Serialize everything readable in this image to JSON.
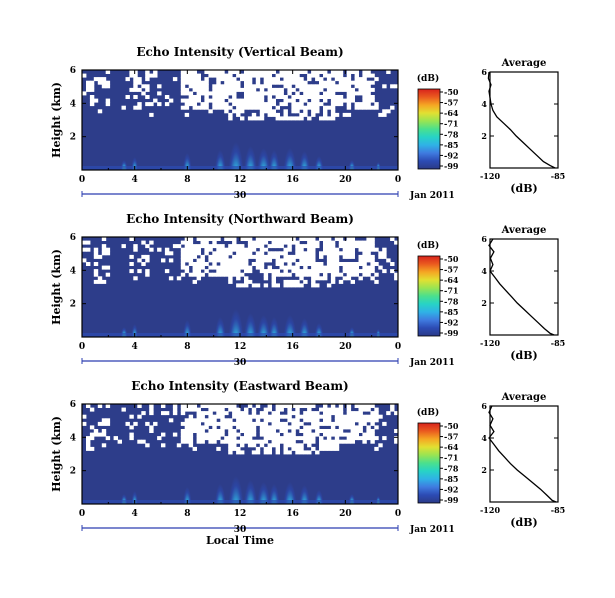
{
  "colors": {
    "background_fill": "#2d3d8a",
    "missing": "#ffffff",
    "colormap": [
      "#2b3a87",
      "#2c4bb4",
      "#3f7be0",
      "#2fb2e6",
      "#27d3c6",
      "#4be08d",
      "#9ae452",
      "#e2e032",
      "#f5a623",
      "#ea5a1f",
      "#d8231c"
    ]
  },
  "chart_data": [
    {
      "type": "heatmap",
      "title": "Echo Intensity (Vertical Beam)",
      "ylabel": "Height (km)",
      "xlabel": "",
      "ylim": [
        0,
        6
      ],
      "xlim": [
        0,
        24
      ],
      "yticks": [
        "6",
        "4",
        "2"
      ],
      "xticks": [
        "0",
        "4",
        "8",
        "12",
        "16",
        "20",
        "0"
      ],
      "date_axis": {
        "tick_label": "30",
        "date_label": "Jan 2011"
      },
      "colorbar": {
        "unit": "(dB)",
        "ticks": [
          "-50",
          "-57",
          "-64",
          "-71",
          "-78",
          "-85",
          "-92",
          "-99"
        ],
        "range": [
          -99,
          -50
        ]
      },
      "average": {
        "title": "Average",
        "xlabel": "(dB)",
        "xticks": [
          "-120",
          "-85"
        ],
        "yticks": [
          "6",
          "4",
          "2"
        ],
        "xlim": [
          -120,
          -85
        ],
        "ylim": [
          0,
          6
        ],
        "profile": [
          [
            -120.5,
            6.0
          ],
          [
            -120.8,
            5.6
          ],
          [
            -119.5,
            5.2
          ],
          [
            -120.5,
            4.8
          ],
          [
            -120.0,
            4.4
          ],
          [
            -119.5,
            4.0
          ],
          [
            -118.5,
            3.6
          ],
          [
            -116.5,
            3.2
          ],
          [
            -113.0,
            2.8
          ],
          [
            -109.5,
            2.4
          ],
          [
            -106.5,
            2.0
          ],
          [
            -103.0,
            1.6
          ],
          [
            -99.5,
            1.2
          ],
          [
            -96.0,
            0.8
          ],
          [
            -92.5,
            0.4
          ],
          [
            -89.0,
            0.15
          ],
          [
            -86.5,
            0.0
          ]
        ]
      }
    },
    {
      "type": "heatmap",
      "title": "Echo Intensity (Northward Beam)",
      "ylabel": "Height (km)",
      "xlabel": "",
      "ylim": [
        0,
        6
      ],
      "xlim": [
        0,
        24
      ],
      "yticks": [
        "6",
        "4",
        "2"
      ],
      "xticks": [
        "0",
        "4",
        "8",
        "12",
        "16",
        "20",
        "0"
      ],
      "date_axis": {
        "tick_label": "30",
        "date_label": "Jan 2011"
      },
      "colorbar": {
        "unit": "(dB)",
        "ticks": [
          "-50",
          "-57",
          "-64",
          "-71",
          "-78",
          "-85",
          "-92",
          "-99"
        ],
        "range": [
          -99,
          -50
        ]
      },
      "average": {
        "title": "Average",
        "xlabel": "(dB)",
        "xticks": [
          "-120",
          "-85"
        ],
        "yticks": [
          "6",
          "4",
          "2"
        ],
        "xlim": [
          -120,
          -85
        ],
        "ylim": [
          0,
          6
        ],
        "profile": [
          [
            -118.5,
            6.0
          ],
          [
            -120.5,
            5.6
          ],
          [
            -118.0,
            5.2
          ],
          [
            -119.8,
            4.8
          ],
          [
            -118.5,
            4.4
          ],
          [
            -120.0,
            4.0
          ],
          [
            -117.5,
            3.6
          ],
          [
            -115.0,
            3.2
          ],
          [
            -112.0,
            2.8
          ],
          [
            -109.0,
            2.4
          ],
          [
            -106.0,
            2.0
          ],
          [
            -102.5,
            1.6
          ],
          [
            -99.0,
            1.2
          ],
          [
            -95.5,
            0.8
          ],
          [
            -92.0,
            0.4
          ],
          [
            -89.0,
            0.1
          ],
          [
            -87.0,
            0.0
          ]
        ]
      }
    },
    {
      "type": "heatmap",
      "title": "Echo Intensity (Eastward Beam)",
      "ylabel": "Height (km)",
      "xlabel": "Local Time",
      "ylim": [
        0,
        6
      ],
      "xlim": [
        0,
        24
      ],
      "yticks": [
        "6",
        "4",
        "2"
      ],
      "xticks": [
        "0",
        "4",
        "8",
        "12",
        "16",
        "20",
        "0"
      ],
      "date_axis": {
        "tick_label": "30",
        "date_label": "Jan 2011"
      },
      "colorbar": {
        "unit": "(dB)",
        "ticks": [
          "-50",
          "-57",
          "-64",
          "-71",
          "-78",
          "-85",
          "-92",
          "-99"
        ],
        "range": [
          -99,
          -50
        ]
      },
      "average": {
        "title": "Average",
        "xlabel": "(dB)",
        "xticks": [
          "-120",
          "-85"
        ],
        "yticks": [
          "6",
          "4",
          "2"
        ],
        "xlim": [
          -120,
          -85
        ],
        "ylim": [
          0,
          6
        ],
        "profile": [
          [
            -119.0,
            6.0
          ],
          [
            -120.5,
            5.6
          ],
          [
            -118.5,
            5.2
          ],
          [
            -120.0,
            4.8
          ],
          [
            -118.0,
            4.4
          ],
          [
            -120.5,
            4.0
          ],
          [
            -118.0,
            3.6
          ],
          [
            -115.5,
            3.2
          ],
          [
            -112.5,
            2.8
          ],
          [
            -109.5,
            2.4
          ],
          [
            -106.0,
            2.0
          ],
          [
            -102.0,
            1.6
          ],
          [
            -98.0,
            1.2
          ],
          [
            -94.0,
            0.8
          ],
          [
            -90.5,
            0.4
          ],
          [
            -88.0,
            0.1
          ],
          [
            -86.0,
            0.0
          ]
        ]
      }
    }
  ]
}
